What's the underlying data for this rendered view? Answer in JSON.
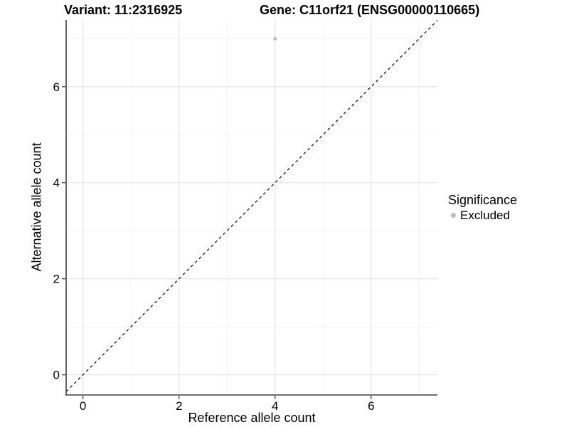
{
  "chart_data": {
    "type": "scatter",
    "titles": {
      "variant": "Variant: 11:2316925",
      "gene": "Gene: C11orf21 (ENSG00000110665)"
    },
    "xlabel": "Reference allele count",
    "ylabel": "Alternative allele count",
    "xlim": [
      -0.35,
      7.38
    ],
    "ylim": [
      -0.42,
      7.39
    ],
    "x_major_ticks": [
      0,
      2,
      4,
      6
    ],
    "y_major_ticks": [
      0,
      2,
      4,
      6
    ],
    "x_minor_gridlines": [
      1,
      3,
      5,
      7
    ],
    "y_minor_gridlines": [
      1,
      3,
      5,
      7
    ],
    "grid": "major+minor",
    "points": [
      {
        "x": 4,
        "y": 7,
        "series": "Excluded"
      }
    ],
    "identity_line": {
      "slope": 1,
      "intercept": 0,
      "style": "dashed"
    },
    "legend": {
      "title": "Significance",
      "position": "right",
      "items": [
        {
          "label": "Excluded",
          "color": "#bdbdbd",
          "marker": "circle"
        }
      ]
    },
    "colors": {
      "point_excluded": "#bdbdbd",
      "grid_major": "#e3e3e3",
      "grid_minor": "#f1f1f1",
      "axis_line": "#404040",
      "tick_mark": "#333333",
      "text": "#000000",
      "identity_line": "#000000",
      "background": "#ffffff"
    }
  }
}
